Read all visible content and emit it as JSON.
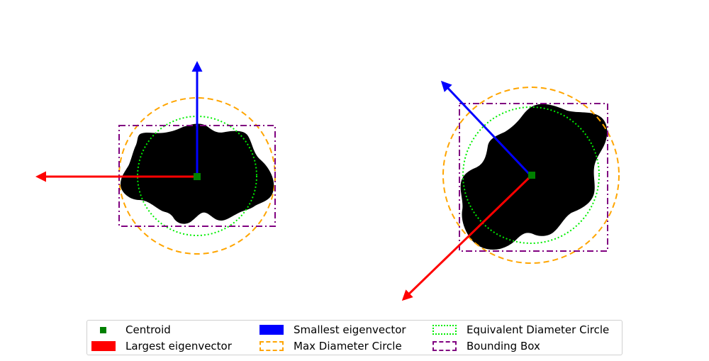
{
  "colors": {
    "centroid": "#008000",
    "largest": "#ff0000",
    "smallest": "#0000ff",
    "max_circle": "#ffa500",
    "equiv_circle": "#00ee00",
    "bbox": "#800080",
    "shape": "#000000"
  },
  "legend": {
    "centroid": "Centroid",
    "largest": "Largest eigenvector",
    "smallest": "Smallest eigenvector",
    "max_circle": "Max Diameter Circle",
    "equiv_circle": "Equivalent Diameter Circle",
    "bbox": "Bounding Box"
  }
}
